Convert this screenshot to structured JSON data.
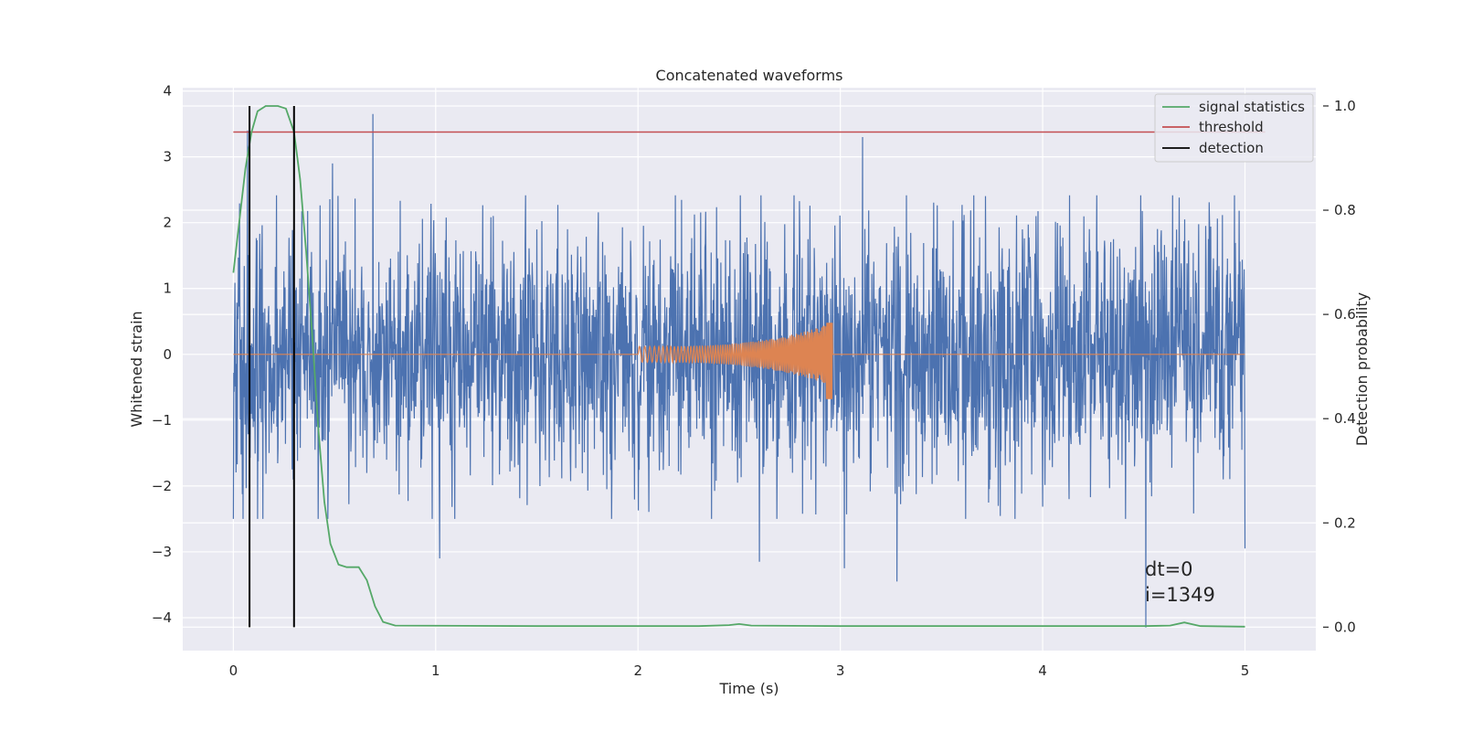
{
  "chart_data": {
    "type": "line",
    "title": "Concatenated waveforms",
    "xlabel": "Time (s)",
    "ylabel": "Whitened strain",
    "y2label": "Detection probability",
    "xlim": [
      -0.25,
      5.35
    ],
    "ylim": [
      -4.5,
      4.05
    ],
    "y2lim": [
      -0.045,
      1.035
    ],
    "xticks": [
      0,
      1,
      2,
      3,
      4,
      5
    ],
    "yticks": [
      4,
      3,
      2,
      1,
      0,
      -1,
      -2,
      -3,
      -4
    ],
    "ytick_labels": [
      "4",
      "3",
      "2",
      "1",
      "0",
      "−1",
      "−2",
      "−3",
      "−4"
    ],
    "y2ticks": [
      1.0,
      0.8,
      0.6,
      0.4,
      0.2,
      0.0
    ],
    "y2tick_labels": [
      "1.0",
      "0.8",
      "0.6",
      "0.4",
      "0.2",
      "0.0"
    ],
    "grid": true,
    "legend": {
      "placement": "top-right",
      "entries": [
        {
          "label": "signal statistics",
          "color": "#55a868"
        },
        {
          "label": "threshold",
          "color": "#c44e52"
        },
        {
          "label": "detection",
          "color": "#000000"
        }
      ]
    },
    "series": [
      {
        "label": "strain (whitened noise)",
        "color": "#4c72b0",
        "axis": "left",
        "x_range": [
          0,
          5
        ],
        "typical_envelope": [
          -2.0,
          2.3
        ],
        "peaks": [
          {
            "x": 0.69,
            "y": 3.65
          },
          {
            "x": 3.11,
            "y": 3.3
          },
          {
            "x": 0.07,
            "y": 3.4
          },
          {
            "x": 0.49,
            "y": 2.9
          },
          {
            "x": 3.28,
            "y": -3.45
          },
          {
            "x": 4.51,
            "y": -4.15
          },
          {
            "x": 3.02,
            "y": -3.25
          },
          {
            "x": 2.6,
            "y": -3.15
          },
          {
            "x": 5.0,
            "y": -2.95
          },
          {
            "x": 1.02,
            "y": -3.1
          },
          {
            "x": 0.12,
            "y": -2.5
          }
        ]
      },
      {
        "label": "injected waveform",
        "color": "#dd8452",
        "axis": "left",
        "x_range": [
          0,
          5
        ],
        "chirp_start": 2.0,
        "chirp_end": 2.96,
        "amplitude_start": 0.12,
        "amplitude_peak": 0.48,
        "amplitude_min": -0.68
      },
      {
        "label": "signal statistics",
        "color": "#55a868",
        "axis": "right",
        "points": [
          [
            0.0,
            0.68
          ],
          [
            0.03,
            0.78
          ],
          [
            0.06,
            0.88
          ],
          [
            0.09,
            0.95
          ],
          [
            0.12,
            0.99
          ],
          [
            0.16,
            1.0
          ],
          [
            0.22,
            1.0
          ],
          [
            0.26,
            0.995
          ],
          [
            0.3,
            0.95
          ],
          [
            0.33,
            0.86
          ],
          [
            0.36,
            0.72
          ],
          [
            0.39,
            0.56
          ],
          [
            0.42,
            0.38
          ],
          [
            0.45,
            0.24
          ],
          [
            0.48,
            0.16
          ],
          [
            0.52,
            0.12
          ],
          [
            0.56,
            0.115
          ],
          [
            0.62,
            0.115
          ],
          [
            0.66,
            0.09
          ],
          [
            0.7,
            0.04
          ],
          [
            0.74,
            0.01
          ],
          [
            0.8,
            0.003
          ],
          [
            1.5,
            0.002
          ],
          [
            2.3,
            0.002
          ],
          [
            2.45,
            0.004
          ],
          [
            2.5,
            0.006
          ],
          [
            2.56,
            0.003
          ],
          [
            3.0,
            0.002
          ],
          [
            4.5,
            0.002
          ],
          [
            4.63,
            0.003
          ],
          [
            4.7,
            0.009
          ],
          [
            4.78,
            0.002
          ],
          [
            5.0,
            0.001
          ]
        ]
      },
      {
        "label": "threshold",
        "color": "#c44e52",
        "axis": "right",
        "x": [
          0,
          5.1
        ],
        "value": 0.95
      },
      {
        "label": "detection",
        "color": "#000000",
        "axis": "right",
        "type": "vlines",
        "x": [
          0.08,
          0.3
        ],
        "y_range": [
          0.0,
          1.0
        ]
      }
    ],
    "annotations": [
      "dt=0",
      "i=1349"
    ]
  }
}
